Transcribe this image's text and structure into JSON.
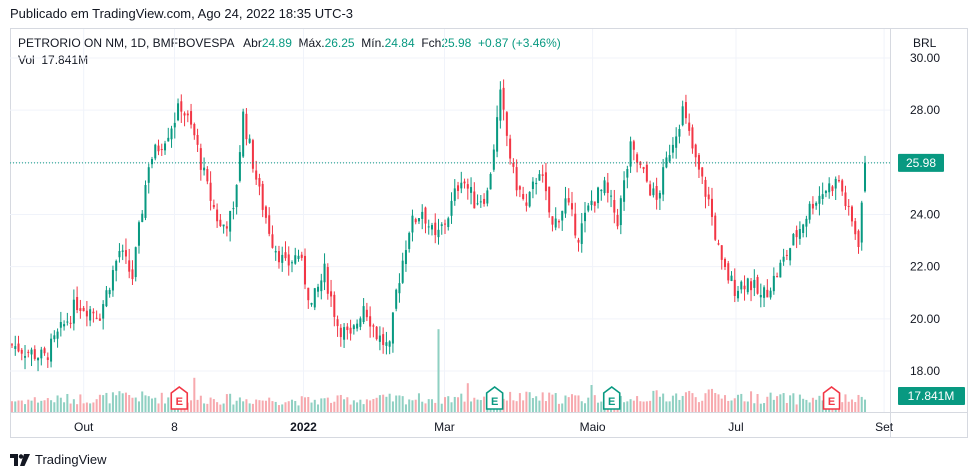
{
  "header": {
    "published": "Publicado em TradingView.com, Ago 24, 2022 18:35 UTC-3"
  },
  "legend": {
    "symbol": "PETRORIO ON NM, 1D, BMFBOVESPA",
    "open_label": "Abr",
    "open": "24.89",
    "high_label": "Máx.",
    "high": "26.25",
    "low_label": "Mín.",
    "low": "24.84",
    "close_label": "Fch",
    "close": "25.98",
    "change": "+0.87 (+3.46%)",
    "vol_label": "Vol",
    "vol": "17.841M"
  },
  "currency": "BRL",
  "footer": {
    "brand": "TradingView"
  },
  "colors": {
    "up": "#089981",
    "down": "#f23645",
    "upVol": "#8fd0c2",
    "downVol": "#f7a9ae",
    "grid": "#f0f3fa",
    "text": "#131722"
  },
  "chart_data": {
    "type": "candlestick",
    "price_axis": {
      "min": 17,
      "max": 30.5,
      "ticks": [
        "30.00",
        "28.00",
        "26.00",
        "24.00",
        "22.00",
        "20.00",
        "18.00"
      ],
      "last_price": 25.98,
      "last_price_label": "25.98",
      "last_volume_label": "17.841M"
    },
    "x_labels": [
      "Out",
      "8",
      "2022",
      "Mar",
      "Maio",
      "Jul",
      "Set"
    ],
    "earnings_markers": [
      {
        "label": "E",
        "kind": "down",
        "date": "2021-11-10"
      },
      {
        "label": "E",
        "kind": "up",
        "date": "2022-03-22"
      },
      {
        "label": "E",
        "kind": "up",
        "date": "2022-05-10"
      },
      {
        "label": "E",
        "kind": "down",
        "date": "2022-08-10"
      }
    ],
    "price_points": [
      [
        0,
        19.0
      ],
      [
        10,
        18.5
      ],
      [
        20,
        20.6
      ],
      [
        27,
        20.2
      ],
      [
        33,
        22.6
      ],
      [
        37,
        21.6
      ],
      [
        42,
        26.0
      ],
      [
        48,
        27.2
      ],
      [
        52,
        28.2
      ],
      [
        56,
        27.0
      ],
      [
        60,
        25.0
      ],
      [
        64,
        23.5
      ],
      [
        68,
        24.0
      ],
      [
        71,
        27.8
      ],
      [
        76,
        24.8
      ],
      [
        80,
        23.0
      ],
      [
        84,
        22.0
      ],
      [
        88,
        22.5
      ],
      [
        92,
        20.5
      ],
      [
        96,
        21.8
      ],
      [
        100,
        19.8
      ],
      [
        104,
        19.2
      ],
      [
        108,
        20.6
      ],
      [
        112,
        19.4
      ],
      [
        116,
        18.8
      ],
      [
        118,
        21.0
      ],
      [
        122,
        23.5
      ],
      [
        126,
        24.2
      ],
      [
        130,
        23.0
      ],
      [
        134,
        24.0
      ],
      [
        138,
        25.5
      ],
      [
        142,
        24.5
      ],
      [
        146,
        24.8
      ],
      [
        150,
        28.5
      ],
      [
        154,
        25.5
      ],
      [
        158,
        24.2
      ],
      [
        162,
        25.8
      ],
      [
        166,
        23.5
      ],
      [
        170,
        24.5
      ],
      [
        174,
        23.2
      ],
      [
        178,
        24.5
      ],
      [
        182,
        25.0
      ],
      [
        186,
        23.8
      ],
      [
        190,
        26.5
      ],
      [
        194,
        25.5
      ],
      [
        198,
        24.5
      ],
      [
        202,
        26.5
      ],
      [
        206,
        28.0
      ],
      [
        210,
        26.0
      ],
      [
        214,
        24.5
      ],
      [
        218,
        22.0
      ],
      [
        222,
        21.2
      ],
      [
        226,
        21.5
      ],
      [
        230,
        20.8
      ],
      [
        234,
        21.5
      ],
      [
        238,
        22.5
      ],
      [
        242,
        23.5
      ],
      [
        246,
        24.5
      ],
      [
        250,
        25.0
      ],
      [
        254,
        25.3
      ],
      [
        257,
        24.0
      ],
      [
        260,
        23.0
      ],
      [
        262,
        25.98
      ]
    ],
    "volume_points": [
      [
        0,
        3.0
      ],
      [
        20,
        3.5
      ],
      [
        35,
        4.0
      ],
      [
        60,
        3.5
      ],
      [
        90,
        3.0
      ],
      [
        120,
        3.5
      ],
      [
        150,
        4.0
      ],
      [
        180,
        3.5
      ],
      [
        210,
        4.5
      ],
      [
        240,
        3.5
      ],
      [
        262,
        3.2
      ]
    ],
    "volume_spikes": [
      {
        "index": 56,
        "value": 9.5
      },
      {
        "index": 131,
        "value": 23.0
      },
      {
        "index": 140,
        "value": 8.0
      },
      {
        "index": 178,
        "value": 7.5
      }
    ]
  }
}
